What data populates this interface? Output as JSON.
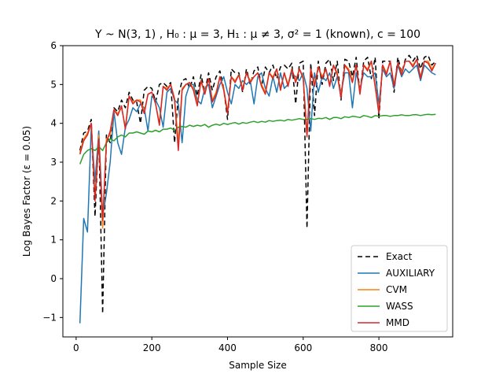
{
  "chart_data": {
    "type": "line",
    "title": "Y ~ N(3, 1) , H₀ : μ = 3, H₁ : μ ≠ 3,  σ² = 1 (known), c = 100",
    "xlabel": "Sample Size",
    "ylabel": "Log Bayes Factor (ε = 0.05)",
    "xlim": [
      -35,
      995
    ],
    "ylim": [
      -1.5,
      6.0
    ],
    "xticks": [
      0,
      200,
      400,
      600,
      800
    ],
    "yticks": [
      -1,
      0,
      1,
      2,
      3,
      4,
      5,
      6
    ],
    "grid": false,
    "legend_position": "lower right",
    "x": [
      10,
      20,
      30,
      40,
      50,
      60,
      70,
      80,
      90,
      100,
      110,
      120,
      130,
      140,
      150,
      160,
      170,
      180,
      190,
      200,
      210,
      220,
      230,
      240,
      250,
      260,
      270,
      280,
      290,
      300,
      310,
      320,
      330,
      340,
      350,
      360,
      370,
      380,
      390,
      400,
      410,
      420,
      430,
      440,
      450,
      460,
      470,
      480,
      490,
      500,
      510,
      520,
      530,
      540,
      550,
      560,
      570,
      580,
      590,
      600,
      610,
      620,
      630,
      640,
      650,
      660,
      670,
      680,
      690,
      700,
      710,
      720,
      730,
      740,
      750,
      760,
      770,
      780,
      790,
      800,
      810,
      820,
      830,
      840,
      850,
      860,
      870,
      880,
      890,
      900,
      910,
      920,
      930,
      940,
      950
    ],
    "series": [
      {
        "name": "Exact",
        "color": "#000000",
        "dash": "6,4",
        "values": [
          3.3,
          3.75,
          3.8,
          4.1,
          1.6,
          3.8,
          -0.9,
          3.7,
          3.5,
          4.4,
          4.3,
          4.6,
          4.4,
          4.8,
          4.6,
          4.55,
          4.0,
          4.85,
          4.95,
          4.9,
          4.55,
          5.0,
          5.05,
          4.95,
          5.05,
          3.5,
          4.7,
          5.1,
          5.15,
          4.9,
          5.2,
          4.7,
          5.25,
          4.8,
          5.3,
          4.85,
          5.2,
          5.35,
          4.9,
          4.1,
          5.4,
          5.3,
          5.3,
          4.8,
          5.4,
          5.0,
          5.35,
          5.45,
          4.95,
          5.45,
          5.3,
          5.5,
          5.15,
          5.45,
          5.5,
          5.4,
          5.55,
          4.5,
          5.55,
          5.6,
          1.3,
          5.55,
          4.2,
          5.6,
          5.0,
          5.55,
          5.65,
          5.1,
          5.6,
          4.6,
          5.65,
          5.6,
          5.2,
          5.7,
          4.8,
          5.6,
          5.7,
          5.15,
          5.7,
          4.1,
          5.6,
          5.6,
          5.6,
          4.8,
          5.7,
          5.3,
          5.65,
          5.75,
          5.6,
          5.75,
          5.4,
          5.7,
          5.75,
          5.5,
          5.6
        ]
      },
      {
        "name": "AUXILIARY",
        "color": "#1f77b4",
        "dash": "",
        "values": [
          -1.15,
          1.55,
          1.2,
          3.9,
          2.5,
          3.8,
          1.6,
          2.2,
          3.0,
          4.3,
          3.5,
          3.2,
          3.9,
          4.1,
          4.4,
          4.3,
          4.5,
          4.4,
          3.8,
          4.7,
          4.6,
          4.4,
          3.9,
          4.8,
          4.9,
          4.6,
          4.5,
          3.5,
          4.7,
          5.0,
          5.0,
          4.6,
          4.5,
          4.9,
          5.0,
          4.4,
          4.7,
          5.0,
          5.2,
          4.8,
          4.5,
          5.0,
          4.9,
          5.1,
          5.0,
          5.1,
          4.5,
          5.2,
          5.3,
          4.9,
          4.7,
          5.2,
          4.8,
          5.3,
          4.9,
          5.0,
          5.3,
          5.2,
          5.1,
          5.3,
          4.9,
          3.8,
          5.3,
          4.8,
          5.2,
          5.1,
          5.3,
          4.9,
          5.2,
          4.8,
          5.3,
          5.3,
          4.4,
          5.3,
          4.9,
          5.3,
          5.2,
          5.2,
          5.3,
          4.5,
          5.4,
          5.2,
          5.3,
          4.9,
          5.5,
          5.2,
          5.4,
          5.3,
          5.4,
          5.5,
          5.1,
          5.5,
          5.4,
          5.3,
          5.25
        ]
      },
      {
        "name": "CVM",
        "color": "#ff7f0e",
        "dash": "",
        "values": [
          3.25,
          3.6,
          3.75,
          4.0,
          2.1,
          3.7,
          1.3,
          3.6,
          3.7,
          4.35,
          4.25,
          4.4,
          3.9,
          4.7,
          4.55,
          4.6,
          4.6,
          4.3,
          4.75,
          4.8,
          4.5,
          4.0,
          4.95,
          4.9,
          5.0,
          4.65,
          3.5,
          4.9,
          5.0,
          5.05,
          4.9,
          4.5,
          5.1,
          4.8,
          5.15,
          4.6,
          4.8,
          5.2,
          4.9,
          4.3,
          5.2,
          5.1,
          5.25,
          4.9,
          5.3,
          5.1,
          5.2,
          5.3,
          5.0,
          4.8,
          5.3,
          5.2,
          5.4,
          4.9,
          5.3,
          5.0,
          5.4,
          5.1,
          5.4,
          5.2,
          3.7,
          5.4,
          5.0,
          5.45,
          5.2,
          5.4,
          5.0,
          5.5,
          5.3,
          4.7,
          5.5,
          5.4,
          5.1,
          5.5,
          4.8,
          5.5,
          5.4,
          5.6,
          5.0,
          4.3,
          5.5,
          5.3,
          5.6,
          5.0,
          5.55,
          5.3,
          5.6,
          5.6,
          5.5,
          5.65,
          5.2,
          5.6,
          5.6,
          5.4,
          5.55
        ]
      },
      {
        "name": "WASS",
        "color": "#2ca02c",
        "dash": "",
        "values": [
          2.95,
          3.2,
          3.3,
          3.35,
          3.3,
          3.4,
          3.3,
          3.5,
          3.6,
          3.55,
          3.65,
          3.7,
          3.65,
          3.75,
          3.75,
          3.78,
          3.75,
          3.72,
          3.8,
          3.78,
          3.82,
          3.78,
          3.85,
          3.85,
          3.88,
          3.82,
          3.9,
          3.92,
          3.9,
          3.95,
          3.92,
          3.95,
          3.93,
          3.97,
          3.9,
          3.95,
          3.98,
          3.95,
          4.0,
          3.97,
          4.0,
          4.02,
          3.98,
          4.02,
          4.0,
          4.03,
          4.05,
          4.02,
          4.05,
          4.03,
          4.07,
          4.05,
          4.07,
          4.08,
          4.06,
          4.1,
          4.08,
          4.1,
          4.12,
          4.1,
          4.1,
          4.12,
          4.1,
          4.13,
          4.12,
          4.15,
          4.1,
          4.15,
          4.15,
          4.12,
          4.17,
          4.15,
          4.18,
          4.17,
          4.15,
          4.2,
          4.18,
          4.15,
          4.2,
          4.18,
          4.2,
          4.2,
          4.18,
          4.2,
          4.2,
          4.22,
          4.2,
          4.2,
          4.22,
          4.22,
          4.2,
          4.22,
          4.23,
          4.22,
          4.23
        ]
      },
      {
        "name": "MMD",
        "color": "#d62728",
        "dash": "",
        "values": [
          3.2,
          3.55,
          3.7,
          4.0,
          2.0,
          3.6,
          1.5,
          3.5,
          3.8,
          4.35,
          4.2,
          4.45,
          3.85,
          4.7,
          4.5,
          4.6,
          4.55,
          4.25,
          4.75,
          4.8,
          4.5,
          3.95,
          4.95,
          4.85,
          5.0,
          4.6,
          3.3,
          4.85,
          5.0,
          5.05,
          4.85,
          4.45,
          5.1,
          4.75,
          5.15,
          4.55,
          4.75,
          5.2,
          4.85,
          4.25,
          5.2,
          5.05,
          5.25,
          4.85,
          5.3,
          5.05,
          5.2,
          5.3,
          4.95,
          4.75,
          5.3,
          5.15,
          5.4,
          4.85,
          5.3,
          4.95,
          5.4,
          5.05,
          5.4,
          5.15,
          3.65,
          5.4,
          4.95,
          5.45,
          5.15,
          5.4,
          4.95,
          5.5,
          5.25,
          4.65,
          5.5,
          5.35,
          5.05,
          5.5,
          4.75,
          5.5,
          5.35,
          5.6,
          4.95,
          4.25,
          5.5,
          5.25,
          5.6,
          4.95,
          5.55,
          5.25,
          5.6,
          5.6,
          5.45,
          5.65,
          5.15,
          5.6,
          5.55,
          5.35,
          5.55
        ]
      }
    ]
  }
}
